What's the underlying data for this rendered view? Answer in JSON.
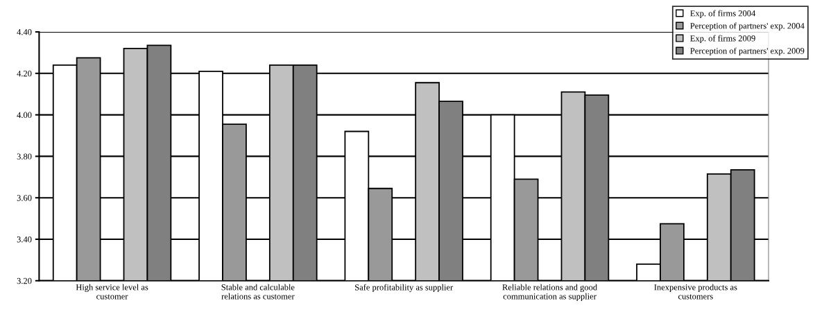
{
  "chart_data": {
    "type": "bar",
    "categories": [
      "High service level as\ncustomer",
      "Stable and calculable\nrelations as customer",
      "Safe profitability as supplier",
      "Reliable relations and good\ncommunication as supplier",
      "Inexpensive products as\ncustomers"
    ],
    "series": [
      {
        "name": "Exp. of firms 2004",
        "color": "#ffffff",
        "values": [
          4.24,
          4.21,
          3.92,
          4.0,
          3.28
        ]
      },
      {
        "name": "Perception of partners' exp. 2004",
        "color": "#999999",
        "values": [
          4.275,
          3.955,
          3.645,
          3.69,
          3.475
        ]
      },
      {
        "name": "Exp. of firms 2009",
        "color": "#c0c0c0",
        "values": [
          4.32,
          4.24,
          4.155,
          4.11,
          3.715
        ]
      },
      {
        "name": "Perception of partners' exp. 2009",
        "color": "#808080",
        "values": [
          4.335,
          4.24,
          4.065,
          4.095,
          3.735
        ]
      }
    ],
    "ylim": [
      3.2,
      4.4
    ],
    "yticks": [
      {
        "value": 3.2,
        "label": "3.20"
      },
      {
        "value": 3.4,
        "label": "3.40"
      },
      {
        "value": 3.6,
        "label": "3.60"
      },
      {
        "value": 3.8,
        "label": "3.80"
      },
      {
        "value": 4.0,
        "label": "4.00"
      },
      {
        "value": 4.2,
        "label": "4.20"
      },
      {
        "value": 4.4,
        "label": "4.40"
      }
    ],
    "grid": "y",
    "legend": "top right"
  }
}
